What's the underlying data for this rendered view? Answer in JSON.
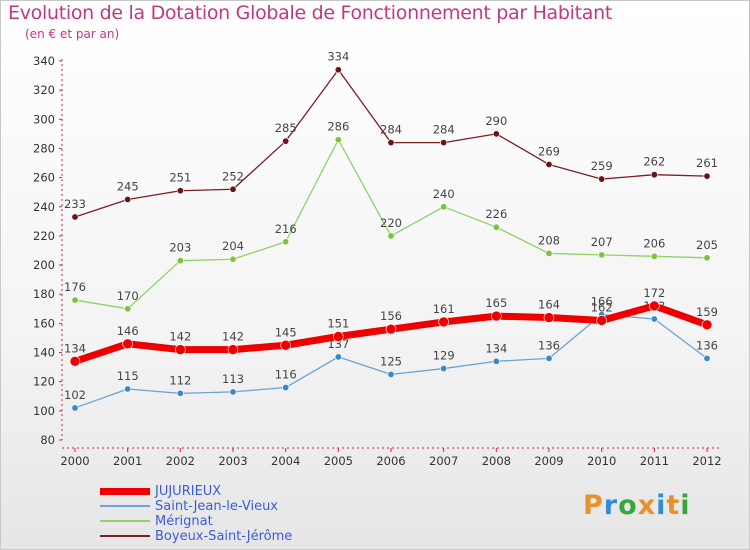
{
  "header": {
    "title": "Evolution de la Dotation Globale de Fonctionnement par Habitant",
    "subtitle": "(en € et par an)"
  },
  "logo": {
    "text": "Proxiti",
    "colors": [
      "#e8912c",
      "#2f8fd6",
      "#3aa53a",
      "#e8912c",
      "#2f8fd6",
      "#e8912c",
      "#3aa53a"
    ]
  },
  "chart_data": {
    "type": "line",
    "title": "Evolution de la Dotation Globale de Fonctionnement par Habitant",
    "subtitle": "(en € et par an)",
    "x": [
      "2000",
      "2001",
      "2002",
      "2003",
      "2004",
      "2005",
      "2006",
      "2007",
      "2008",
      "2009",
      "2010",
      "2011",
      "2012"
    ],
    "ylim": [
      80,
      340
    ],
    "yticks": [
      80,
      100,
      120,
      140,
      160,
      180,
      200,
      220,
      240,
      260,
      280,
      300,
      320,
      340
    ],
    "grid": false,
    "legend_position": "bottom-left",
    "series": [
      {
        "name": "Boyeux-Saint-Jérôme",
        "color": "#7a1f22",
        "marker": "#6a1418",
        "width": 1.3,
        "values": [
          233,
          245,
          251,
          252,
          285,
          334,
          284,
          284,
          290,
          269,
          259,
          262,
          261
        ]
      },
      {
        "name": "Mérignat",
        "color": "#8fd16a",
        "marker": "#7ac43c",
        "width": 1.3,
        "values": [
          176,
          170,
          203,
          204,
          216,
          286,
          220,
          240,
          226,
          208,
          207,
          206,
          205
        ]
      },
      {
        "name": "Saint-Jean-le-Vieux",
        "color": "#6aa3d6",
        "marker": "#3b87c8",
        "width": 1.3,
        "values": [
          102,
          115,
          112,
          113,
          116,
          137,
          125,
          129,
          134,
          136,
          166,
          163,
          136
        ]
      },
      {
        "name": "JUJURIEUX",
        "color": "#ee0000",
        "marker": "#ee0000",
        "width": 7,
        "values": [
          134,
          146,
          142,
          142,
          145,
          151,
          156,
          161,
          165,
          164,
          162,
          172,
          159
        ]
      }
    ]
  }
}
